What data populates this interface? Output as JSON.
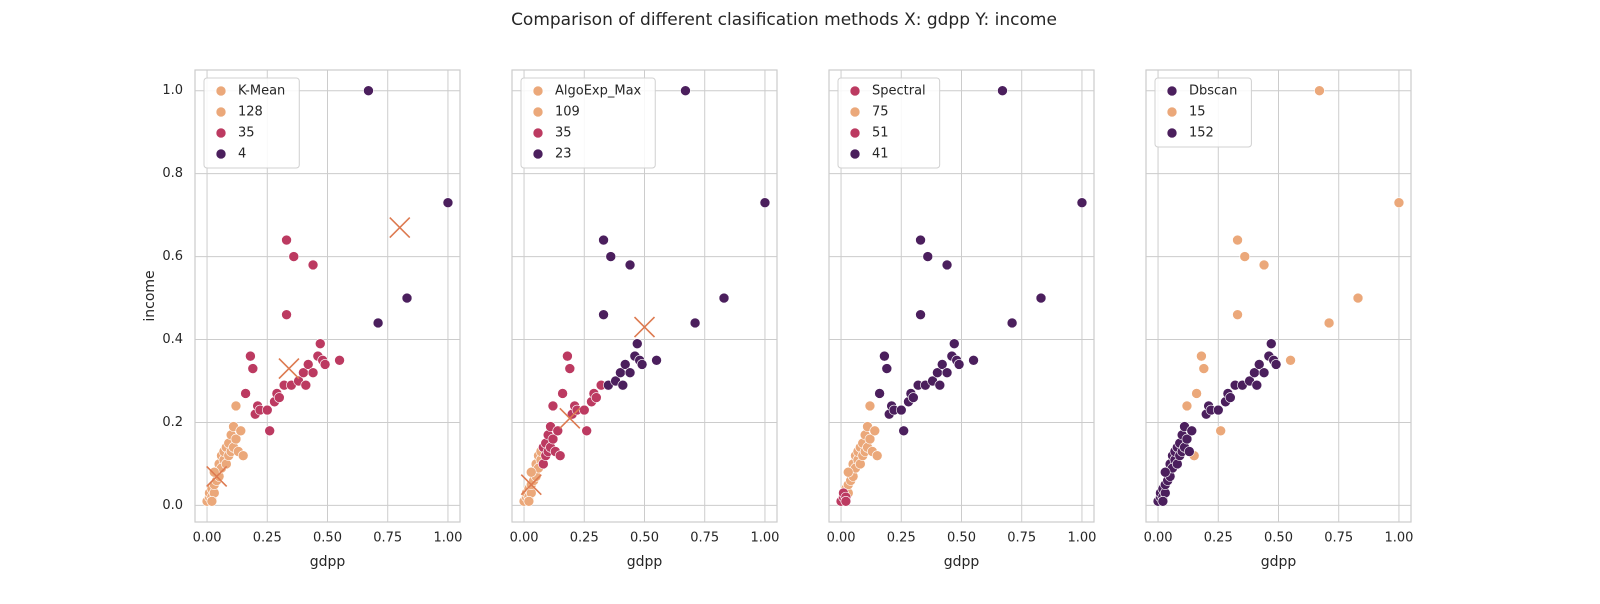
{
  "title": "Comparison of different clasification methods X: gdpp Y: income",
  "chart_data": [
    {
      "type": "scatter",
      "x_label": "gdpp",
      "y_label": "income",
      "legend_title": "K-Mean",
      "legend_title_color": "#eba87a",
      "xlim": [
        -0.05,
        1.05
      ],
      "ylim": [
        -0.04,
        1.05
      ],
      "xticks": [
        {
          "value": 0,
          "label": "0.00"
        },
        {
          "value": 0.25,
          "label": "0.25"
        },
        {
          "value": 0.5,
          "label": "0.50"
        },
        {
          "value": 0.75,
          "label": "0.75"
        },
        {
          "value": 1,
          "label": "1.00"
        }
      ],
      "yticks": [
        {
          "value": 0,
          "label": "0.0"
        },
        {
          "value": 0.2,
          "label": "0.2"
        },
        {
          "value": 0.4,
          "label": "0.4"
        },
        {
          "value": 0.6,
          "label": "0.6"
        },
        {
          "value": 0.8,
          "label": "0.8"
        },
        {
          "value": 1,
          "label": "1.0"
        }
      ],
      "grid": true,
      "series": [
        {
          "name": "128",
          "color": "#eba87a",
          "x": [
            0,
            0.01,
            0.01,
            0.02,
            0.02,
            0.03,
            0.03,
            0.04,
            0.04,
            0.05,
            0.05,
            0.06,
            0.06,
            0.07,
            0.07,
            0.08,
            0.08,
            0.09,
            0.09,
            0.1,
            0.1,
            0.11,
            0.11,
            0.12,
            0.12,
            0.13,
            0.14,
            0.15,
            0.02,
            0.03
          ],
          "y": [
            0.01,
            0.02,
            0.03,
            0.02,
            0.04,
            0.03,
            0.05,
            0.06,
            0.08,
            0.07,
            0.1,
            0.09,
            0.12,
            0.11,
            0.13,
            0.1,
            0.14,
            0.12,
            0.15,
            0.13,
            0.17,
            0.14,
            0.19,
            0.16,
            0.24,
            0.13,
            0.18,
            0.12,
            0.01,
            0.08
          ]
        },
        {
          "name": "35",
          "color": "#bc3a61",
          "x": [
            0.16,
            0.18,
            0.19,
            0.2,
            0.21,
            0.22,
            0.25,
            0.26,
            0.28,
            0.29,
            0.3,
            0.32,
            0.33,
            0.33,
            0.36,
            0.35,
            0.38,
            0.4,
            0.41,
            0.42,
            0.44,
            0.44,
            0.46,
            0.47,
            0.48,
            0.49,
            0.55
          ],
          "y": [
            0.27,
            0.36,
            0.33,
            0.22,
            0.24,
            0.23,
            0.23,
            0.18,
            0.25,
            0.27,
            0.26,
            0.29,
            0.46,
            0.64,
            0.6,
            0.29,
            0.3,
            0.32,
            0.29,
            0.34,
            0.32,
            0.58,
            0.36,
            0.39,
            0.35,
            0.34,
            0.35
          ]
        },
        {
          "name": "4",
          "color": "#4b1f5d",
          "x": [
            0.67,
            0.71,
            0.83,
            1.0
          ],
          "y": [
            1.0,
            0.44,
            0.5,
            0.73
          ]
        }
      ],
      "centroids": {
        "color": "#dd7a50",
        "x": [
          0.04,
          0.34,
          0.8
        ],
        "y": [
          0.07,
          0.33,
          0.67
        ]
      }
    },
    {
      "type": "scatter",
      "x_label": "gdpp",
      "legend_title": "AlgoExp_Max",
      "legend_title_color": "#eba87a",
      "xlim": [
        -0.05,
        1.05
      ],
      "xticks": [
        {
          "value": 0,
          "label": "0.00"
        },
        {
          "value": 0.25,
          "label": "0.25"
        },
        {
          "value": 0.5,
          "label": "0.50"
        },
        {
          "value": 0.75,
          "label": "0.75"
        },
        {
          "value": 1,
          "label": "1.00"
        }
      ],
      "series": [
        {
          "name": "109",
          "color": "#eba87a",
          "x": [
            0,
            0.01,
            0.01,
            0.02,
            0.02,
            0.03,
            0.03,
            0.04,
            0.04,
            0.05,
            0.05,
            0.06,
            0.06,
            0.07,
            0.07,
            0.02,
            0.03
          ],
          "y": [
            0.01,
            0.02,
            0.03,
            0.02,
            0.04,
            0.03,
            0.05,
            0.06,
            0.08,
            0.07,
            0.1,
            0.09,
            0.12,
            0.11,
            0.13,
            0.01,
            0.08
          ]
        },
        {
          "name": "35",
          "color": "#bc3a61",
          "x": [
            0.08,
            0.08,
            0.09,
            0.09,
            0.1,
            0.1,
            0.11,
            0.11,
            0.12,
            0.12,
            0.13,
            0.14,
            0.15,
            0.16,
            0.18,
            0.19,
            0.2,
            0.21,
            0.22,
            0.25,
            0.26,
            0.28,
            0.29,
            0.3,
            0.32
          ],
          "y": [
            0.1,
            0.14,
            0.12,
            0.15,
            0.13,
            0.17,
            0.14,
            0.19,
            0.16,
            0.24,
            0.13,
            0.18,
            0.12,
            0.27,
            0.36,
            0.33,
            0.22,
            0.24,
            0.23,
            0.23,
            0.18,
            0.25,
            0.27,
            0.26,
            0.29
          ]
        },
        {
          "name": "23",
          "color": "#4b1f5d",
          "x": [
            0.33,
            0.33,
            0.36,
            0.35,
            0.38,
            0.4,
            0.41,
            0.42,
            0.44,
            0.44,
            0.46,
            0.47,
            0.48,
            0.49,
            0.55,
            0.67,
            0.71,
            0.83,
            1.0
          ],
          "y": [
            0.46,
            0.64,
            0.6,
            0.29,
            0.3,
            0.32,
            0.29,
            0.34,
            0.32,
            0.58,
            0.36,
            0.39,
            0.35,
            0.34,
            0.35,
            1.0,
            0.44,
            0.5,
            0.73
          ]
        }
      ],
      "centroids": {
        "color": "#dd7a50",
        "x": [
          0.03,
          0.19,
          0.5
        ],
        "y": [
          0.05,
          0.21,
          0.43
        ]
      }
    },
    {
      "type": "scatter",
      "x_label": "gdpp",
      "legend_title": "Spectral",
      "legend_title_color": "#bc3a61",
      "xlim": [
        -0.05,
        1.05
      ],
      "xticks": [
        {
          "value": 0,
          "label": "0.00"
        },
        {
          "value": 0.25,
          "label": "0.25"
        },
        {
          "value": 0.5,
          "label": "0.50"
        },
        {
          "value": 0.75,
          "label": "0.75"
        },
        {
          "value": 1,
          "label": "1.00"
        }
      ],
      "series": [
        {
          "name": "75",
          "color": "#eba87a",
          "x": [
            0.02,
            0.03,
            0.03,
            0.04,
            0.04,
            0.05,
            0.05,
            0.06,
            0.06,
            0.07,
            0.07,
            0.08,
            0.08,
            0.09,
            0.09,
            0.1,
            0.1,
            0.11,
            0.11,
            0.12,
            0.12,
            0.13,
            0.14,
            0.15,
            0.03
          ],
          "y": [
            0.04,
            0.03,
            0.05,
            0.06,
            0.08,
            0.07,
            0.1,
            0.09,
            0.12,
            0.11,
            0.13,
            0.1,
            0.14,
            0.12,
            0.15,
            0.13,
            0.17,
            0.14,
            0.19,
            0.16,
            0.24,
            0.13,
            0.18,
            0.12,
            0.08
          ]
        },
        {
          "name": "51",
          "color": "#bc3a61",
          "x": [
            0,
            0.01,
            0.01,
            0.02,
            0.02
          ],
          "y": [
            0.01,
            0.02,
            0.03,
            0.02,
            0.01
          ]
        },
        {
          "name": "41",
          "color": "#4b1f5d",
          "x": [
            0.16,
            0.18,
            0.19,
            0.2,
            0.21,
            0.22,
            0.25,
            0.26,
            0.28,
            0.29,
            0.3,
            0.32,
            0.33,
            0.33,
            0.36,
            0.35,
            0.38,
            0.4,
            0.41,
            0.42,
            0.44,
            0.44,
            0.46,
            0.47,
            0.48,
            0.49,
            0.55,
            0.67,
            0.71,
            0.83,
            1.0
          ],
          "y": [
            0.27,
            0.36,
            0.33,
            0.22,
            0.24,
            0.23,
            0.23,
            0.18,
            0.25,
            0.27,
            0.26,
            0.29,
            0.46,
            0.64,
            0.6,
            0.29,
            0.3,
            0.32,
            0.29,
            0.34,
            0.32,
            0.58,
            0.36,
            0.39,
            0.35,
            0.34,
            0.35,
            1.0,
            0.44,
            0.5,
            0.73
          ]
        }
      ]
    },
    {
      "type": "scatter",
      "x_label": "gdpp",
      "legend_title": "Dbscan",
      "legend_title_color": "#4b1f5d",
      "xlim": [
        -0.05,
        1.05
      ],
      "xticks": [
        {
          "value": 0,
          "label": "0.00"
        },
        {
          "value": 0.25,
          "label": "0.25"
        },
        {
          "value": 0.5,
          "label": "0.50"
        },
        {
          "value": 0.75,
          "label": "0.75"
        },
        {
          "value": 1,
          "label": "1.00"
        }
      ],
      "series": [
        {
          "name": "15",
          "color": "#eba87a",
          "x": [
            0.67,
            1.0,
            0.83,
            0.71,
            0.55,
            0.33,
            0.36,
            0.44,
            0.33,
            0.18,
            0.19,
            0.16,
            0.12,
            0.26,
            0.15
          ],
          "y": [
            1.0,
            0.73,
            0.5,
            0.44,
            0.35,
            0.64,
            0.6,
            0.58,
            0.46,
            0.36,
            0.33,
            0.27,
            0.24,
            0.18,
            0.12
          ]
        },
        {
          "name": "152",
          "color": "#4b1f5d",
          "x": [
            0,
            0.01,
            0.01,
            0.02,
            0.02,
            0.03,
            0.03,
            0.04,
            0.04,
            0.05,
            0.05,
            0.06,
            0.06,
            0.07,
            0.07,
            0.08,
            0.08,
            0.09,
            0.09,
            0.1,
            0.1,
            0.11,
            0.11,
            0.12,
            0.13,
            0.14,
            0.02,
            0.03,
            0.2,
            0.21,
            0.22,
            0.25,
            0.28,
            0.29,
            0.3,
            0.32,
            0.35,
            0.38,
            0.4,
            0.41,
            0.42,
            0.44,
            0.46,
            0.47,
            0.48,
            0.49
          ],
          "y": [
            0.01,
            0.02,
            0.03,
            0.02,
            0.04,
            0.03,
            0.05,
            0.06,
            0.08,
            0.07,
            0.1,
            0.09,
            0.12,
            0.11,
            0.13,
            0.1,
            0.14,
            0.12,
            0.15,
            0.13,
            0.17,
            0.14,
            0.19,
            0.16,
            0.13,
            0.18,
            0.01,
            0.08,
            0.22,
            0.24,
            0.23,
            0.23,
            0.25,
            0.27,
            0.26,
            0.29,
            0.29,
            0.3,
            0.32,
            0.29,
            0.34,
            0.32,
            0.36,
            0.39,
            0.35,
            0.34
          ]
        }
      ]
    }
  ]
}
